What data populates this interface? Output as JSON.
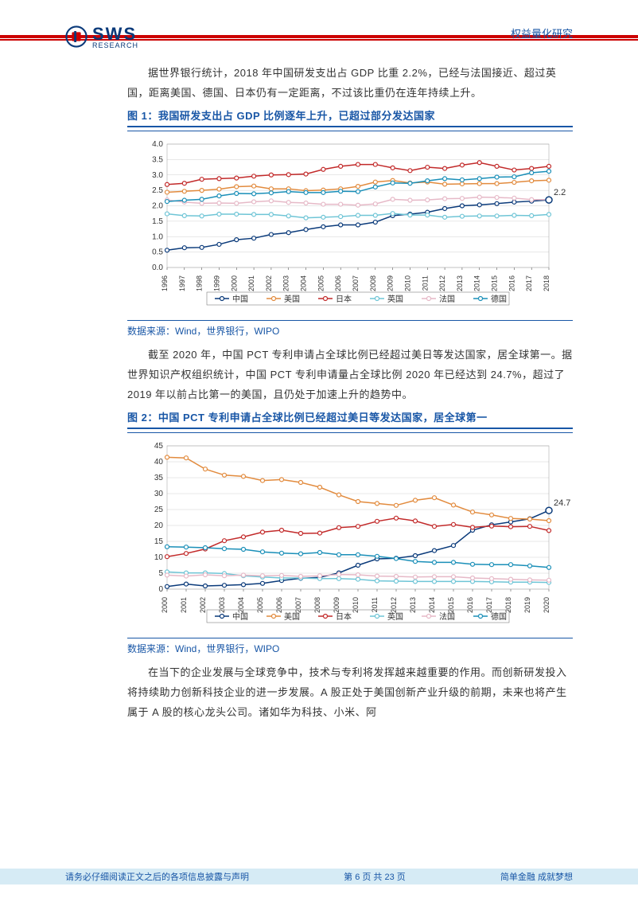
{
  "header": {
    "category": "权益量化研究",
    "logo_main": "SWS",
    "logo_sub": "RESEARCH"
  },
  "para1": "据世界银行统计，2018 年中国研发支出占 GDP 比重 2.2%，已经与法国接近、超过英国，距离美国、德国、日本仍有一定距离，不过该比重仍在连年持续上升。",
  "fig1": {
    "title": "图 1：我国研发支出占 GDP 比例逐年上升，已超过部分发达国家",
    "type": "line",
    "years": [
      "1996",
      "1997",
      "1998",
      "1999",
      "2000",
      "2001",
      "2002",
      "2003",
      "2004",
      "2005",
      "2006",
      "2007",
      "2008",
      "2009",
      "2010",
      "2011",
      "2012",
      "2013",
      "2014",
      "2015",
      "2016",
      "2017",
      "2018"
    ],
    "ylim": [
      0,
      4.0
    ],
    "ytick_step": 0.5,
    "series": [
      {
        "name": "中国",
        "color": "#0a3a7a",
        "values": [
          0.56,
          0.64,
          0.65,
          0.75,
          0.9,
          0.95,
          1.07,
          1.13,
          1.23,
          1.32,
          1.38,
          1.38,
          1.47,
          1.68,
          1.73,
          1.79,
          1.91,
          2.0,
          2.03,
          2.07,
          2.12,
          2.15,
          2.19
        ]
      },
      {
        "name": "美国",
        "color": "#e28b3e",
        "values": [
          2.44,
          2.47,
          2.5,
          2.54,
          2.62,
          2.64,
          2.55,
          2.55,
          2.49,
          2.51,
          2.55,
          2.63,
          2.77,
          2.82,
          2.74,
          2.77,
          2.7,
          2.71,
          2.72,
          2.72,
          2.76,
          2.81,
          2.83
        ]
      },
      {
        "name": "日本",
        "color": "#c22a2a",
        "values": [
          2.69,
          2.73,
          2.86,
          2.88,
          2.9,
          2.96,
          3.0,
          3.01,
          3.03,
          3.18,
          3.28,
          3.34,
          3.34,
          3.23,
          3.14,
          3.25,
          3.21,
          3.32,
          3.4,
          3.28,
          3.16,
          3.21,
          3.28
        ]
      },
      {
        "name": "英国",
        "color": "#6fc5d6",
        "values": [
          1.74,
          1.68,
          1.67,
          1.73,
          1.73,
          1.72,
          1.72,
          1.67,
          1.61,
          1.63,
          1.65,
          1.69,
          1.69,
          1.75,
          1.7,
          1.7,
          1.63,
          1.66,
          1.67,
          1.67,
          1.69,
          1.68,
          1.72
        ]
      },
      {
        "name": "法国",
        "color": "#e6b9c7",
        "values": [
          2.19,
          2.12,
          2.08,
          2.09,
          2.08,
          2.13,
          2.16,
          2.11,
          2.09,
          2.05,
          2.05,
          2.02,
          2.06,
          2.21,
          2.18,
          2.19,
          2.23,
          2.24,
          2.28,
          2.27,
          2.25,
          2.2,
          2.2
        ]
      },
      {
        "name": "德国",
        "color": "#1a8fb8",
        "values": [
          2.14,
          2.18,
          2.21,
          2.32,
          2.4,
          2.39,
          2.42,
          2.46,
          2.43,
          2.43,
          2.47,
          2.46,
          2.61,
          2.74,
          2.73,
          2.81,
          2.88,
          2.84,
          2.88,
          2.93,
          2.94,
          3.07,
          3.12
        ]
      }
    ],
    "endpoint_label": "2.2",
    "source": "数据来源：Wind，世界银行，WIPO",
    "grid_color": "#d0d0d0",
    "axis_color": "#333",
    "label_fontsize": 10
  },
  "para2": "截至 2020 年，中国 PCT 专利申请占全球比例已经超过美日等发达国家，居全球第一。据世界知识产权组织统计，中国 PCT 专利申请量占全球比例 2020 年已经达到 24.7%，超过了 2019 年以前占比第一的美国，且仍处于加速上升的趋势中。",
  "fig2": {
    "title": "图 2：中国 PCT 专利申请占全球比例已经超过美日等发达国家，居全球第一",
    "type": "line",
    "years": [
      "2000",
      "2001",
      "2002",
      "2003",
      "2004",
      "2005",
      "2006",
      "2007",
      "2008",
      "2009",
      "2010",
      "2011",
      "2012",
      "2013",
      "2014",
      "2015",
      "2016",
      "2017",
      "2018",
      "2019",
      "2020"
    ],
    "ylim": [
      0,
      45
    ],
    "ytick_step": 5,
    "series": [
      {
        "name": "中国",
        "color": "#0a3a7a",
        "values": [
          0.8,
          1.6,
          1.0,
          1.2,
          1.4,
          1.8,
          2.7,
          3.4,
          3.7,
          5.1,
          7.5,
          9.5,
          9.7,
          10.5,
          12.1,
          13.7,
          18.5,
          20.2,
          21.1,
          22.1,
          24.7
        ]
      },
      {
        "name": "美国",
        "color": "#e28b3e",
        "values": [
          41.4,
          41.2,
          37.7,
          35.8,
          35.4,
          34.1,
          34.4,
          33.5,
          32.0,
          29.6,
          27.5,
          26.9,
          26.3,
          27.9,
          28.7,
          26.4,
          24.2,
          23.3,
          22.2,
          22.0,
          21.5
        ]
      },
      {
        "name": "日本",
        "color": "#c22a2a",
        "values": [
          10.2,
          11.2,
          12.6,
          15.2,
          16.4,
          17.9,
          18.5,
          17.5,
          17.6,
          19.3,
          19.7,
          21.3,
          22.3,
          21.4,
          19.7,
          20.3,
          19.4,
          19.8,
          19.6,
          19.7,
          18.4
        ]
      },
      {
        "name": "英国",
        "color": "#6fc5d6",
        "values": [
          5.4,
          5.1,
          5.1,
          4.9,
          4.2,
          3.8,
          3.5,
          3.5,
          3.3,
          3.3,
          3.1,
          2.6,
          2.5,
          2.4,
          2.4,
          2.4,
          2.4,
          2.3,
          2.2,
          2.2,
          2.1
        ]
      },
      {
        "name": "法国",
        "color": "#e6b9c7",
        "values": [
          4.4,
          4.1,
          4.5,
          4.2,
          4.4,
          4.2,
          4.3,
          4.0,
          4.2,
          4.6,
          4.5,
          4.1,
          4.0,
          3.8,
          3.9,
          3.9,
          3.5,
          3.3,
          3.1,
          2.9,
          2.8
        ]
      },
      {
        "name": "德国",
        "color": "#1a8fb8",
        "values": [
          13.3,
          13.2,
          13.0,
          12.7,
          12.5,
          11.7,
          11.3,
          11.1,
          11.5,
          10.8,
          10.8,
          10.3,
          9.6,
          8.7,
          8.4,
          8.4,
          7.8,
          7.7,
          7.7,
          7.3,
          6.8
        ]
      }
    ],
    "endpoint_label": "24.7",
    "source": "数据来源：Wind，世界银行，WIPO",
    "grid_color": "#d0d0d0",
    "axis_color": "#333",
    "label_fontsize": 10
  },
  "para3": "在当下的企业发展与全球竞争中，技术与专利将发挥越来越重要的作用。而创新研发投入将持续助力创新科技企业的进一步发展。A 股正处于美国创新产业升级的前期，未来也将产生属于 A 股的核心龙头公司。诸如华为科技、小米、阿",
  "footer": {
    "left": "请务必仔细阅读正文之后的各项信息披露与声明",
    "center": "第 6 页 共 23 页",
    "right": "简单金融 成就梦想"
  }
}
